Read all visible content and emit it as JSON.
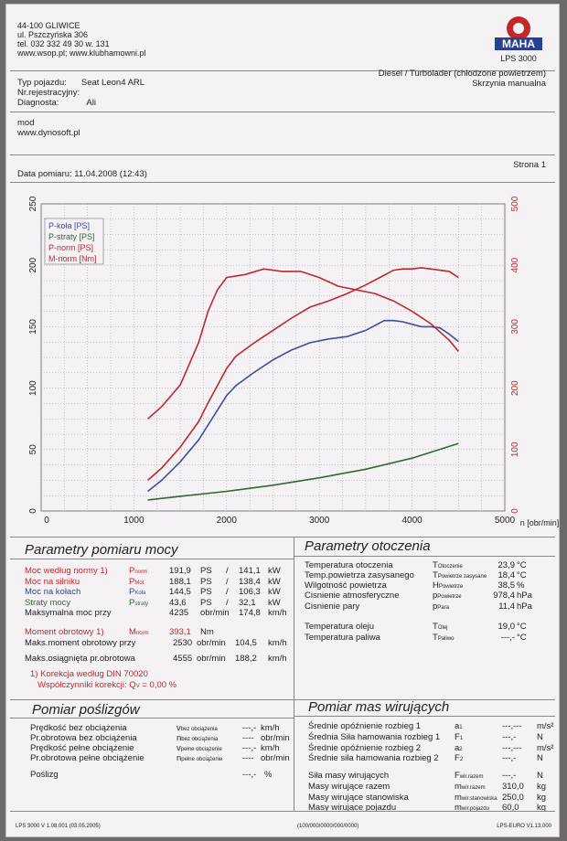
{
  "header": {
    "address_lines": [
      "44-100 GLIWICE",
      "ul. Pszczyńska 306",
      "tel. 032 332 49 30 w. 131",
      "www.wsop.pl; www.klubhamowni.pl"
    ],
    "logo_text": "MAHA",
    "logo_sub": "LPS 3000",
    "vehicle_type_label": "Typ pojazdu:",
    "vehicle_type": "Seat Leon4 ARL",
    "reg_label": "Nr.rejestracyjny:",
    "reg_value": "",
    "diag_label": "Diagnosta:",
    "diag_value": "Ali",
    "engine": "Diesel / Turbolader (chłodzone powietrzem)",
    "gearbox": "Skrzynia manualna",
    "mod_lines": [
      "mod",
      "www.dynosoft.pl"
    ],
    "date_label": "Data pomiaru: 11.04.2008 (12:43)",
    "page_label": "Strona 1"
  },
  "chart_data": {
    "type": "line",
    "xlabel": "n [obr/min]",
    "xlim": [
      0,
      5000
    ],
    "x_ticks": [
      "0",
      "1000",
      "2000",
      "3000",
      "4000",
      "5000"
    ],
    "ylim_left": [
      0,
      250
    ],
    "y_ticks_left": [
      "0",
      "50",
      "100",
      "150",
      "200",
      "250"
    ],
    "ylim_right": [
      0,
      500
    ],
    "y_ticks_right": [
      "0",
      "100",
      "200",
      "300",
      "400",
      "500"
    ],
    "grid": true,
    "legend_position": "top-left",
    "series": [
      {
        "name": "P-koła [PS]",
        "color": "#3b4fa0",
        "axis": "left",
        "x": [
          1150,
          1300,
          1500,
          1700,
          1800,
          1900,
          2000,
          2100,
          2300,
          2500,
          2700,
          2900,
          3100,
          3300,
          3500,
          3700,
          3800,
          3900,
          4000,
          4100,
          4200,
          4300,
          4400,
          4500
        ],
        "y": [
          16,
          25,
          40,
          58,
          70,
          82,
          94,
          102,
          113,
          123,
          131,
          137,
          140,
          142,
          147,
          155,
          155,
          154,
          152,
          150,
          150,
          149,
          144,
          138
        ]
      },
      {
        "name": "P-straty [PS]",
        "color": "#2e6a36",
        "axis": "left",
        "x": [
          1150,
          1500,
          2000,
          2500,
          3000,
          3500,
          4000,
          4500
        ],
        "y": [
          9,
          12,
          16,
          21,
          27,
          34,
          43,
          55
        ]
      },
      {
        "name": "P-norm [PS]",
        "color": "#c0282a",
        "axis": "left",
        "x": [
          1150,
          1300,
          1500,
          1700,
          1800,
          1900,
          2000,
          2100,
          2300,
          2500,
          2700,
          2900,
          3100,
          3300,
          3500,
          3700,
          3800,
          3900,
          4000,
          4100,
          4200,
          4300,
          4400,
          4500
        ],
        "y": [
          25,
          35,
          52,
          73,
          88,
          102,
          116,
          126,
          137,
          147,
          157,
          166,
          171,
          177,
          184,
          192,
          196,
          197,
          197,
          198,
          197,
          196,
          195,
          190
        ]
      },
      {
        "name": "M-norm [Nm]",
        "color": "#c0282a",
        "axis": "right",
        "x": [
          1150,
          1300,
          1500,
          1700,
          1800,
          1900,
          2000,
          2200,
          2400,
          2600,
          2800,
          3000,
          3200,
          3400,
          3600,
          3800,
          4000,
          4200,
          4400,
          4500
        ],
        "y": [
          150,
          170,
          205,
          275,
          325,
          360,
          380,
          385,
          394,
          390,
          390,
          380,
          366,
          360,
          354,
          342,
          325,
          305,
          278,
          260
        ]
      }
    ]
  },
  "params_moc": {
    "title": "Parametry pomiaru mocy",
    "rows": [
      {
        "label": "Moc według normy",
        "note": "1)",
        "sym": "P",
        "sub": "norm",
        "v1": "191,9",
        "u1": "PS",
        "sep": "/",
        "v2": "141,1",
        "u2": "kW",
        "color": "red"
      },
      {
        "label": "Moc na silniku",
        "note": "",
        "sym": "P",
        "sub": "Mot",
        "v1": "188,1",
        "u1": "PS",
        "sep": "/",
        "v2": "138,4",
        "u2": "kW",
        "color": "red"
      },
      {
        "label": "Moc na kołach",
        "note": "",
        "sym": "P",
        "sub": "Koła",
        "v1": "144,5",
        "u1": "PS",
        "sep": "/",
        "v2": "106,3",
        "u2": "kW",
        "color": "blue"
      },
      {
        "label": "Straty mocy",
        "note": "",
        "sym": "P",
        "sub": "straty",
        "v1": "43,6",
        "u1": "PS",
        "sep": "/",
        "v2": "32,1",
        "u2": "kW",
        "color": "green"
      },
      {
        "label": "Maksymalna moc przy",
        "note": "",
        "sym": "",
        "sub": "",
        "v1": "4235",
        "u1": "obr/min",
        "sep": "",
        "v2": "174,8",
        "u2": "km/h",
        "color": ""
      }
    ],
    "moment": {
      "label": "Moment obrotowy",
      "note": "1)",
      "sym": "M",
      "sub": "norm",
      "value": "393,1",
      "unit": "Nm"
    },
    "max_moment": {
      "label": "Maks.moment obrotowy przy",
      "v1": "2530",
      "u1": "obr/min",
      "v2": "104,5",
      "u2": "km/h"
    },
    "max_rpm": {
      "label": "Maks.osiągnięta pr.obrotowa",
      "v1": "4555",
      "u1": "obr/min",
      "v2": "188,2",
      "u2": "km/h"
    },
    "note1": "1) Korekcja według DIN 70020",
    "note2": "Współczynniki korekcji: Q",
    "note2_sub": "V",
    "note2_val": "=  0,00 %"
  },
  "params_otoczenia": {
    "title": "Parametry otoczenia",
    "rows": [
      {
        "label": "Temperatura otoczenia",
        "sym": "T",
        "sub": "Otoczenie",
        "value": "23,9",
        "unit": "°C"
      },
      {
        "label": "Temp.powietrza zasysanego",
        "sym": "T",
        "sub": "Powietrze zasysane",
        "value": "18,4",
        "unit": "°C"
      },
      {
        "label": "Wilgotność powietrza",
        "sym": "H",
        "sub": "Powietrze",
        "value": "38,5",
        "unit": "%"
      },
      {
        "label": "Cisnienie atmosferyczne",
        "sym": "p",
        "sub": "Powietrze",
        "value": "978,4",
        "unit": "hPa"
      },
      {
        "label": "Cisnienie pary",
        "sym": "p",
        "sub": "Para",
        "value": "11,4",
        "unit": "hPa"
      },
      {
        "label": "Temperatura oleju",
        "sym": "T",
        "sub": "Olej",
        "value": "19,0",
        "unit": "°C"
      },
      {
        "label": "Temperatura paliwa",
        "sym": "T",
        "sub": "Paliwo",
        "value": "---,-",
        "unit": "°C"
      }
    ]
  },
  "poslizg": {
    "title": "Pomiar poślizgów",
    "rows": [
      {
        "label": "Prędkość bez obciążenia",
        "sym": "v",
        "sub": "bez obciążenia",
        "value": "---,-",
        "unit": "km/h"
      },
      {
        "label": "Pr.obrotowa bez obciążenia",
        "sym": "n",
        "sub": "bez obciążenia",
        "value": "----",
        "unit": "obr/min"
      },
      {
        "label": "Prędkość pełne obciążenie",
        "sym": "v",
        "sub": "pełne obciążenie",
        "value": "---,-",
        "unit": "km/h"
      },
      {
        "label": "Pr.obrotowa pełne obciążenie",
        "sym": "n",
        "sub": "pełne obciążenie",
        "value": "----",
        "unit": "obr/min"
      }
    ],
    "poslizg_label": "Poślizg",
    "poslizg_value": "---,-",
    "poslizg_unit": "%"
  },
  "masy": {
    "title": "Pomiar mas wirujących",
    "rows": [
      {
        "label": "Średnie opóźnienie rozbieg 1",
        "sym": "a",
        "sub": "1",
        "value": "---,---",
        "unit": "m/s²"
      },
      {
        "label": "Średnia Siła hamowania rozbieg 1",
        "sym": "F",
        "sub": "1",
        "value": "---,-",
        "unit": "N"
      },
      {
        "label": "Średnie opóźnienie rozbieg 2",
        "sym": "a",
        "sub": "2",
        "value": "---,---",
        "unit": "m/s²"
      },
      {
        "label": "Średnie siła hamowania rozbieg 2",
        "sym": "F",
        "sub": "2",
        "value": "---,-",
        "unit": "N"
      },
      {
        "label": "Siła masy wirujących",
        "sym": "F",
        "sub": "wir.razem",
        "value": "---,-",
        "unit": "N"
      },
      {
        "label": "Masy wirujące razem",
        "sym": "m",
        "sub": "wir.razem",
        "value": "310,0",
        "unit": "kg"
      },
      {
        "label": "Masy wirujące stanowiska",
        "sym": "m",
        "sub": "wir.stanowiska",
        "value": "250,0",
        "unit": "kg"
      },
      {
        "label": "Masy wirujące pojazdu",
        "sym": "m",
        "sub": "wir.pojazdu",
        "value": "60,0",
        "unit": "kg"
      }
    ]
  },
  "footer": {
    "left": "LPS 3000 V 1.08.001 (03.05.2005)",
    "center": "(100/000/0000/000/0000)",
    "right": "LPS-EURO V1.13.000"
  }
}
